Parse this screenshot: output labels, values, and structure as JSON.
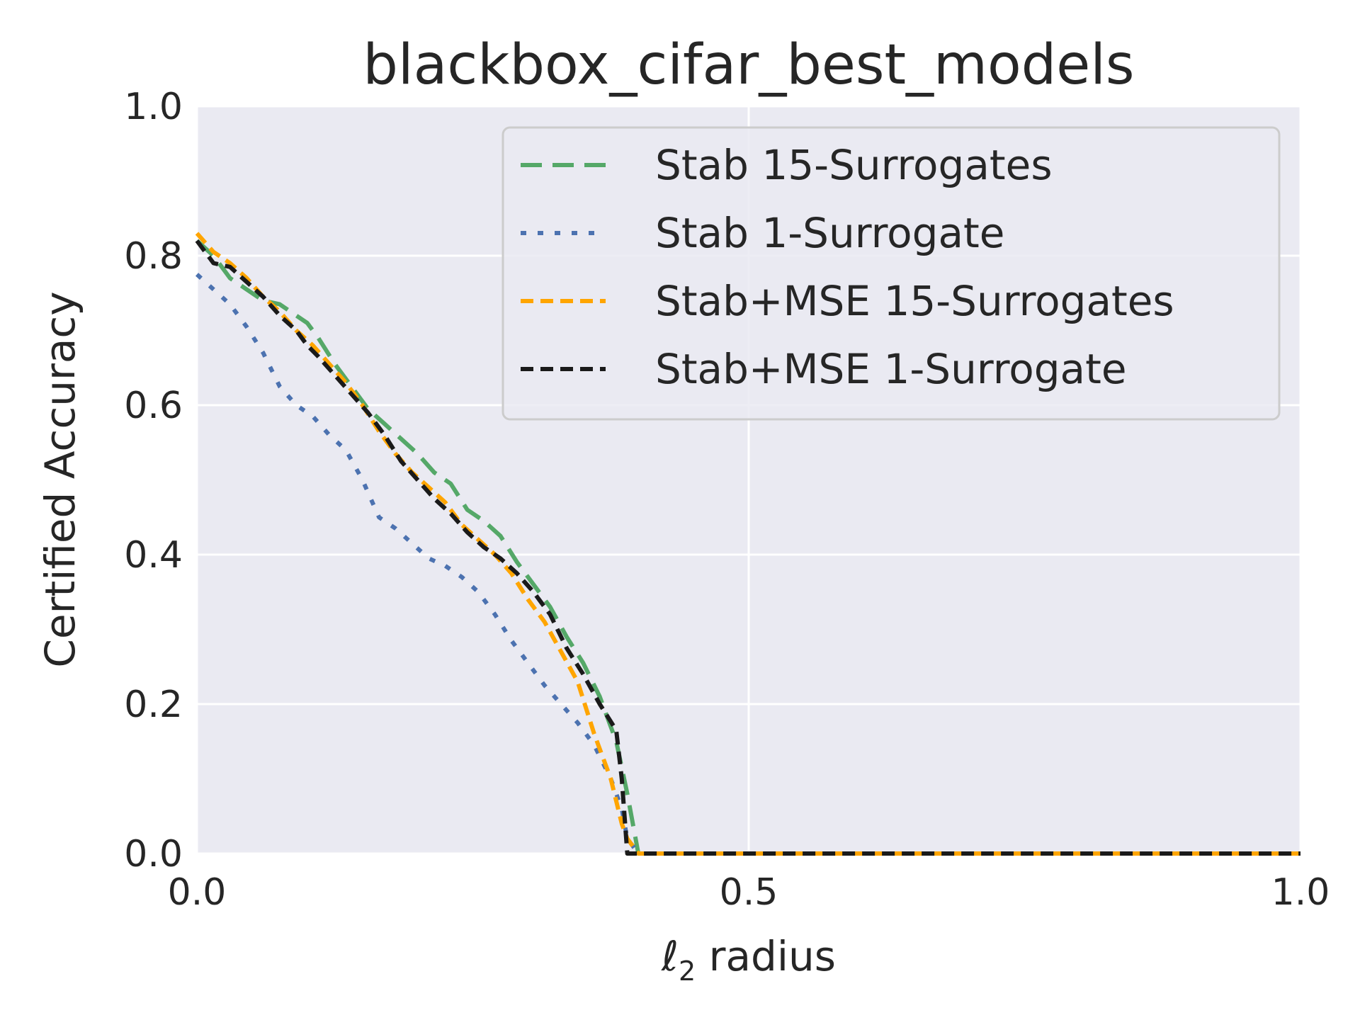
{
  "chart_data": {
    "type": "line",
    "title": "blackbox_cifar_best_models",
    "xlabel_script": "ℓ",
    "xlabel_subscript": "2",
    "xlabel_rest": " radius",
    "ylabel": "Certified Accuracy",
    "xlim": [
      0.0,
      1.0
    ],
    "ylim": [
      0.0,
      1.0
    ],
    "xticks": [
      "0.0",
      "0.5",
      "1.0"
    ],
    "yticks": [
      "0.0",
      "0.2",
      "0.4",
      "0.6",
      "0.8",
      "1.0"
    ],
    "grid": true,
    "legend_position": "upper right",
    "series": [
      {
        "name": "Stab 15-Surrogates",
        "color": "#55a868",
        "style": "long-dash",
        "x": [
          0.0,
          0.015,
          0.03,
          0.045,
          0.06,
          0.075,
          0.09,
          0.1,
          0.11,
          0.125,
          0.14,
          0.155,
          0.17,
          0.185,
          0.2,
          0.215,
          0.23,
          0.245,
          0.26,
          0.275,
          0.29,
          0.305,
          0.32,
          0.335,
          0.35,
          0.365,
          0.38,
          0.39,
          0.4,
          1.0
        ],
        "y": [
          0.82,
          0.8,
          0.77,
          0.755,
          0.74,
          0.735,
          0.72,
          0.71,
          0.69,
          0.655,
          0.625,
          0.595,
          0.575,
          0.555,
          0.535,
          0.51,
          0.495,
          0.46,
          0.445,
          0.425,
          0.39,
          0.36,
          0.33,
          0.29,
          0.255,
          0.21,
          0.15,
          0.08,
          0.0,
          0.0
        ]
      },
      {
        "name": "Stab 1-Surrogate",
        "color": "#4c72b0",
        "style": "dotted",
        "x": [
          0.0,
          0.015,
          0.03,
          0.045,
          0.06,
          0.075,
          0.09,
          0.105,
          0.12,
          0.135,
          0.15,
          0.165,
          0.18,
          0.195,
          0.21,
          0.225,
          0.24,
          0.255,
          0.27,
          0.285,
          0.3,
          0.315,
          0.33,
          0.345,
          0.36,
          0.375,
          0.385,
          0.39,
          0.4,
          1.0
        ],
        "y": [
          0.775,
          0.755,
          0.735,
          0.705,
          0.67,
          0.625,
          0.6,
          0.585,
          0.56,
          0.54,
          0.5,
          0.45,
          0.435,
          0.415,
          0.395,
          0.385,
          0.37,
          0.35,
          0.32,
          0.285,
          0.255,
          0.225,
          0.2,
          0.175,
          0.145,
          0.1,
          0.06,
          0.02,
          0.0,
          0.0
        ]
      },
      {
        "name": "Stab+MSE 15-Surrogates",
        "color": "#ffa500",
        "style": "dashed",
        "x": [
          0.0,
          0.015,
          0.03,
          0.045,
          0.06,
          0.075,
          0.09,
          0.105,
          0.12,
          0.135,
          0.15,
          0.165,
          0.18,
          0.195,
          0.21,
          0.225,
          0.24,
          0.255,
          0.27,
          0.285,
          0.3,
          0.315,
          0.33,
          0.345,
          0.36,
          0.375,
          0.385,
          0.39,
          0.4,
          1.0
        ],
        "y": [
          0.83,
          0.805,
          0.79,
          0.77,
          0.745,
          0.725,
          0.7,
          0.68,
          0.655,
          0.63,
          0.6,
          0.565,
          0.535,
          0.51,
          0.49,
          0.47,
          0.44,
          0.42,
          0.4,
          0.375,
          0.34,
          0.31,
          0.27,
          0.23,
          0.16,
          0.1,
          0.04,
          0.02,
          0.0,
          0.0
        ]
      },
      {
        "name": "Stab+MSE 1-Surrogate",
        "color": "#1a1a1a",
        "style": "dashed",
        "x": [
          0.0,
          0.015,
          0.03,
          0.045,
          0.06,
          0.075,
          0.09,
          0.1,
          0.11,
          0.125,
          0.14,
          0.155,
          0.17,
          0.185,
          0.2,
          0.215,
          0.23,
          0.245,
          0.26,
          0.275,
          0.29,
          0.305,
          0.32,
          0.335,
          0.35,
          0.365,
          0.38,
          0.385,
          0.39,
          1.0
        ],
        "y": [
          0.82,
          0.79,
          0.785,
          0.765,
          0.745,
          0.72,
          0.7,
          0.68,
          0.665,
          0.64,
          0.615,
          0.59,
          0.56,
          0.525,
          0.5,
          0.475,
          0.455,
          0.43,
          0.41,
          0.395,
          0.375,
          0.35,
          0.32,
          0.275,
          0.24,
          0.2,
          0.165,
          0.1,
          0.0,
          0.0
        ]
      }
    ]
  }
}
